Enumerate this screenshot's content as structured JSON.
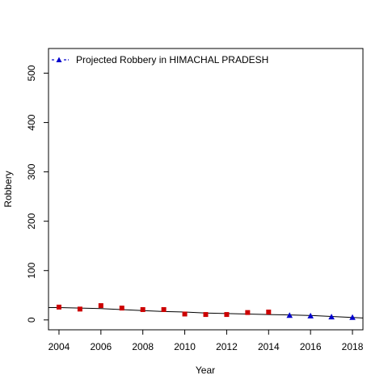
{
  "chart_data": {
    "type": "scatter",
    "xlabel": "Year",
    "ylabel": "Robbery",
    "xlim": [
      2003.5,
      2018.5
    ],
    "ylim": [
      -20,
      550
    ],
    "xticks": [
      2004,
      2006,
      2008,
      2010,
      2012,
      2014,
      2016,
      2018
    ],
    "yticks": [
      0,
      100,
      200,
      300,
      400,
      500
    ],
    "grid": false,
    "legend": {
      "position": "top-left",
      "entries": [
        {
          "label": "Projected Robbery in HIMACHAL PRADESH",
          "color": "#0000cc",
          "marker": "triangle"
        }
      ]
    },
    "series": [
      {
        "kind": "observed",
        "color": "#cc0000",
        "marker": "square",
        "x": [
          2004,
          2005,
          2006,
          2007,
          2008,
          2009,
          2010,
          2011,
          2012,
          2013,
          2014
        ],
        "y": [
          26,
          22,
          29,
          24,
          21,
          21,
          12,
          11,
          11,
          15,
          16
        ]
      },
      {
        "name": "Projected Robbery in HIMACHAL PRADESH",
        "kind": "projected",
        "color": "#0000cc",
        "marker": "triangle",
        "x": [
          2015,
          2016,
          2017,
          2018
        ],
        "y": [
          9,
          8,
          6,
          5
        ]
      },
      {
        "kind": "trend",
        "color": "#000000",
        "x": [
          2003.5,
          2004,
          2005,
          2006,
          2007,
          2008,
          2009,
          2010,
          2011,
          2012,
          2013,
          2014,
          2015,
          2016,
          2017,
          2018,
          2018.5
        ],
        "y": [
          25,
          25,
          24,
          23,
          21,
          19,
          17,
          16,
          14,
          13,
          12,
          11,
          10,
          9,
          7,
          5,
          4
        ]
      }
    ]
  }
}
